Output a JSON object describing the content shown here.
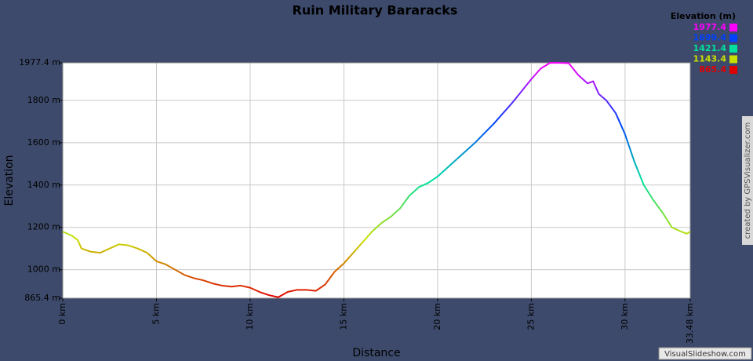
{
  "chart_data": {
    "type": "line",
    "title": "Ruin Military Bararacks",
    "x_label": "Distance",
    "y_label": "Elevation",
    "credit": "created by GPSVisualizer.com",
    "watermark": "VisualSlideshow.com",
    "x": [
      0,
      0.5,
      0.8,
      1.0,
      1.5,
      2.0,
      2.5,
      3.0,
      3.5,
      4.0,
      4.5,
      5.0,
      5.5,
      6.0,
      6.5,
      7.0,
      7.5,
      8.0,
      8.5,
      9.0,
      9.5,
      10.0,
      10.5,
      11.0,
      11.5,
      12.0,
      12.5,
      13.0,
      13.5,
      14.0,
      14.5,
      15.0,
      15.5,
      16.0,
      16.5,
      17.0,
      17.5,
      18.0,
      18.5,
      19.0,
      19.5,
      20.0,
      21.0,
      22.0,
      23.0,
      24.0,
      25.0,
      25.5,
      26.0,
      26.5,
      27.0,
      27.5,
      28.0,
      28.3,
      28.6,
      29.0,
      29.5,
      30.0,
      30.5,
      31.0,
      31.5,
      32.0,
      32.5,
      33.0,
      33.3,
      33.48
    ],
    "values": [
      1180,
      1160,
      1140,
      1100,
      1085,
      1080,
      1100,
      1120,
      1115,
      1100,
      1080,
      1040,
      1025,
      1000,
      975,
      960,
      950,
      935,
      925,
      920,
      925,
      915,
      895,
      880,
      870,
      895,
      905,
      905,
      900,
      930,
      990,
      1030,
      1080,
      1130,
      1180,
      1220,
      1250,
      1290,
      1350,
      1390,
      1410,
      1440,
      1520,
      1600,
      1690,
      1790,
      1900,
      1950,
      1977,
      1977,
      1975,
      1920,
      1880,
      1890,
      1830,
      1800,
      1740,
      1640,
      1510,
      1400,
      1330,
      1270,
      1200,
      1180,
      1170,
      1180
    ],
    "xlim": [
      0,
      33.48
    ],
    "ylim": [
      865.4,
      1977.4
    ],
    "xticks": [
      {
        "value": 0,
        "label": "0 km"
      },
      {
        "value": 5,
        "label": "5 km"
      },
      {
        "value": 10,
        "label": "10 km"
      },
      {
        "value": 15,
        "label": "15 km"
      },
      {
        "value": 20,
        "label": "20 km"
      },
      {
        "value": 25,
        "label": "25 km"
      },
      {
        "value": 30,
        "label": "30 km"
      },
      {
        "value": 33.48,
        "label": "33.48 km"
      }
    ],
    "yticks": [
      {
        "value": 865.4,
        "label": "865.4 m"
      },
      {
        "value": 1000,
        "label": "1000 m"
      },
      {
        "value": 1200,
        "label": "1200 m"
      },
      {
        "value": 1400,
        "label": "1400 m"
      },
      {
        "value": 1600,
        "label": "1600 m"
      },
      {
        "value": 1800,
        "label": "1800 m"
      },
      {
        "value": 1977.4,
        "label": "1977.4 m"
      }
    ],
    "grid": true,
    "color_scale": {
      "title": "Elevation (m)",
      "values": [
        1977.4,
        1699.4,
        1421.4,
        1143.4,
        865.4
      ],
      "colors": [
        "#ff00ff",
        "#0040ff",
        "#00e0a0",
        "#c8e000",
        "#e00000"
      ]
    }
  }
}
